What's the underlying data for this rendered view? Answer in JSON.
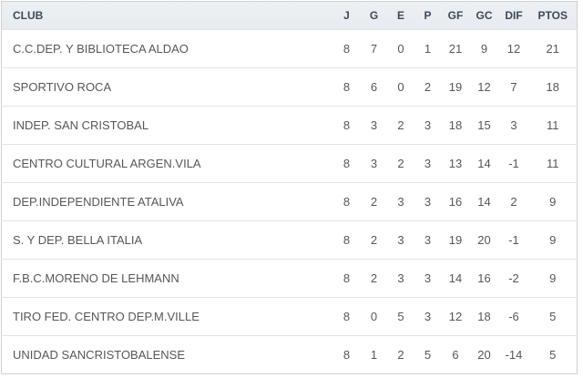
{
  "chart_data": {
    "type": "table",
    "columns": [
      "CLUB",
      "J",
      "G",
      "E",
      "P",
      "GF",
      "GC",
      "DIF",
      "PTOS"
    ],
    "rows": [
      {
        "club": "C.C.DEP. Y BIBLIOTECA ALDAO",
        "j": 8,
        "g": 7,
        "e": 0,
        "p": 1,
        "gf": 21,
        "gc": 9,
        "dif": 12,
        "ptos": 21
      },
      {
        "club": "SPORTIVO ROCA",
        "j": 8,
        "g": 6,
        "e": 0,
        "p": 2,
        "gf": 19,
        "gc": 12,
        "dif": 7,
        "ptos": 18
      },
      {
        "club": "INDEP. SAN CRISTOBAL",
        "j": 8,
        "g": 3,
        "e": 2,
        "p": 3,
        "gf": 18,
        "gc": 15,
        "dif": 3,
        "ptos": 11
      },
      {
        "club": "CENTRO CULTURAL ARGEN.VILA",
        "j": 8,
        "g": 3,
        "e": 2,
        "p": 3,
        "gf": 13,
        "gc": 14,
        "dif": -1,
        "ptos": 11
      },
      {
        "club": "DEP.INDEPENDIENTE ATALIVA",
        "j": 8,
        "g": 2,
        "e": 3,
        "p": 3,
        "gf": 16,
        "gc": 14,
        "dif": 2,
        "ptos": 9
      },
      {
        "club": "S. Y DEP. BELLA ITALIA",
        "j": 8,
        "g": 2,
        "e": 3,
        "p": 3,
        "gf": 19,
        "gc": 20,
        "dif": -1,
        "ptos": 9
      },
      {
        "club": "F.B.C.MORENO DE LEHMANN",
        "j": 8,
        "g": 2,
        "e": 3,
        "p": 3,
        "gf": 14,
        "gc": 16,
        "dif": -2,
        "ptos": 9
      },
      {
        "club": "TIRO FED. CENTRO DEP.M.VILLE",
        "j": 8,
        "g": 0,
        "e": 5,
        "p": 3,
        "gf": 12,
        "gc": 18,
        "dif": -6,
        "ptos": 5
      },
      {
        "club": "UNIDAD SANCRISTOBALENSE",
        "j": 8,
        "g": 1,
        "e": 2,
        "p": 5,
        "gf": 6,
        "gc": 20,
        "dif": -14,
        "ptos": 5
      }
    ]
  },
  "colors": {
    "header_bg": "#e7ebef",
    "header_bg_top": "#edf0f3",
    "header_text": "#3e4a57",
    "body_text": "#575757",
    "border_outer": "#ccd1d6",
    "row_divider": "#e1e4e7"
  }
}
